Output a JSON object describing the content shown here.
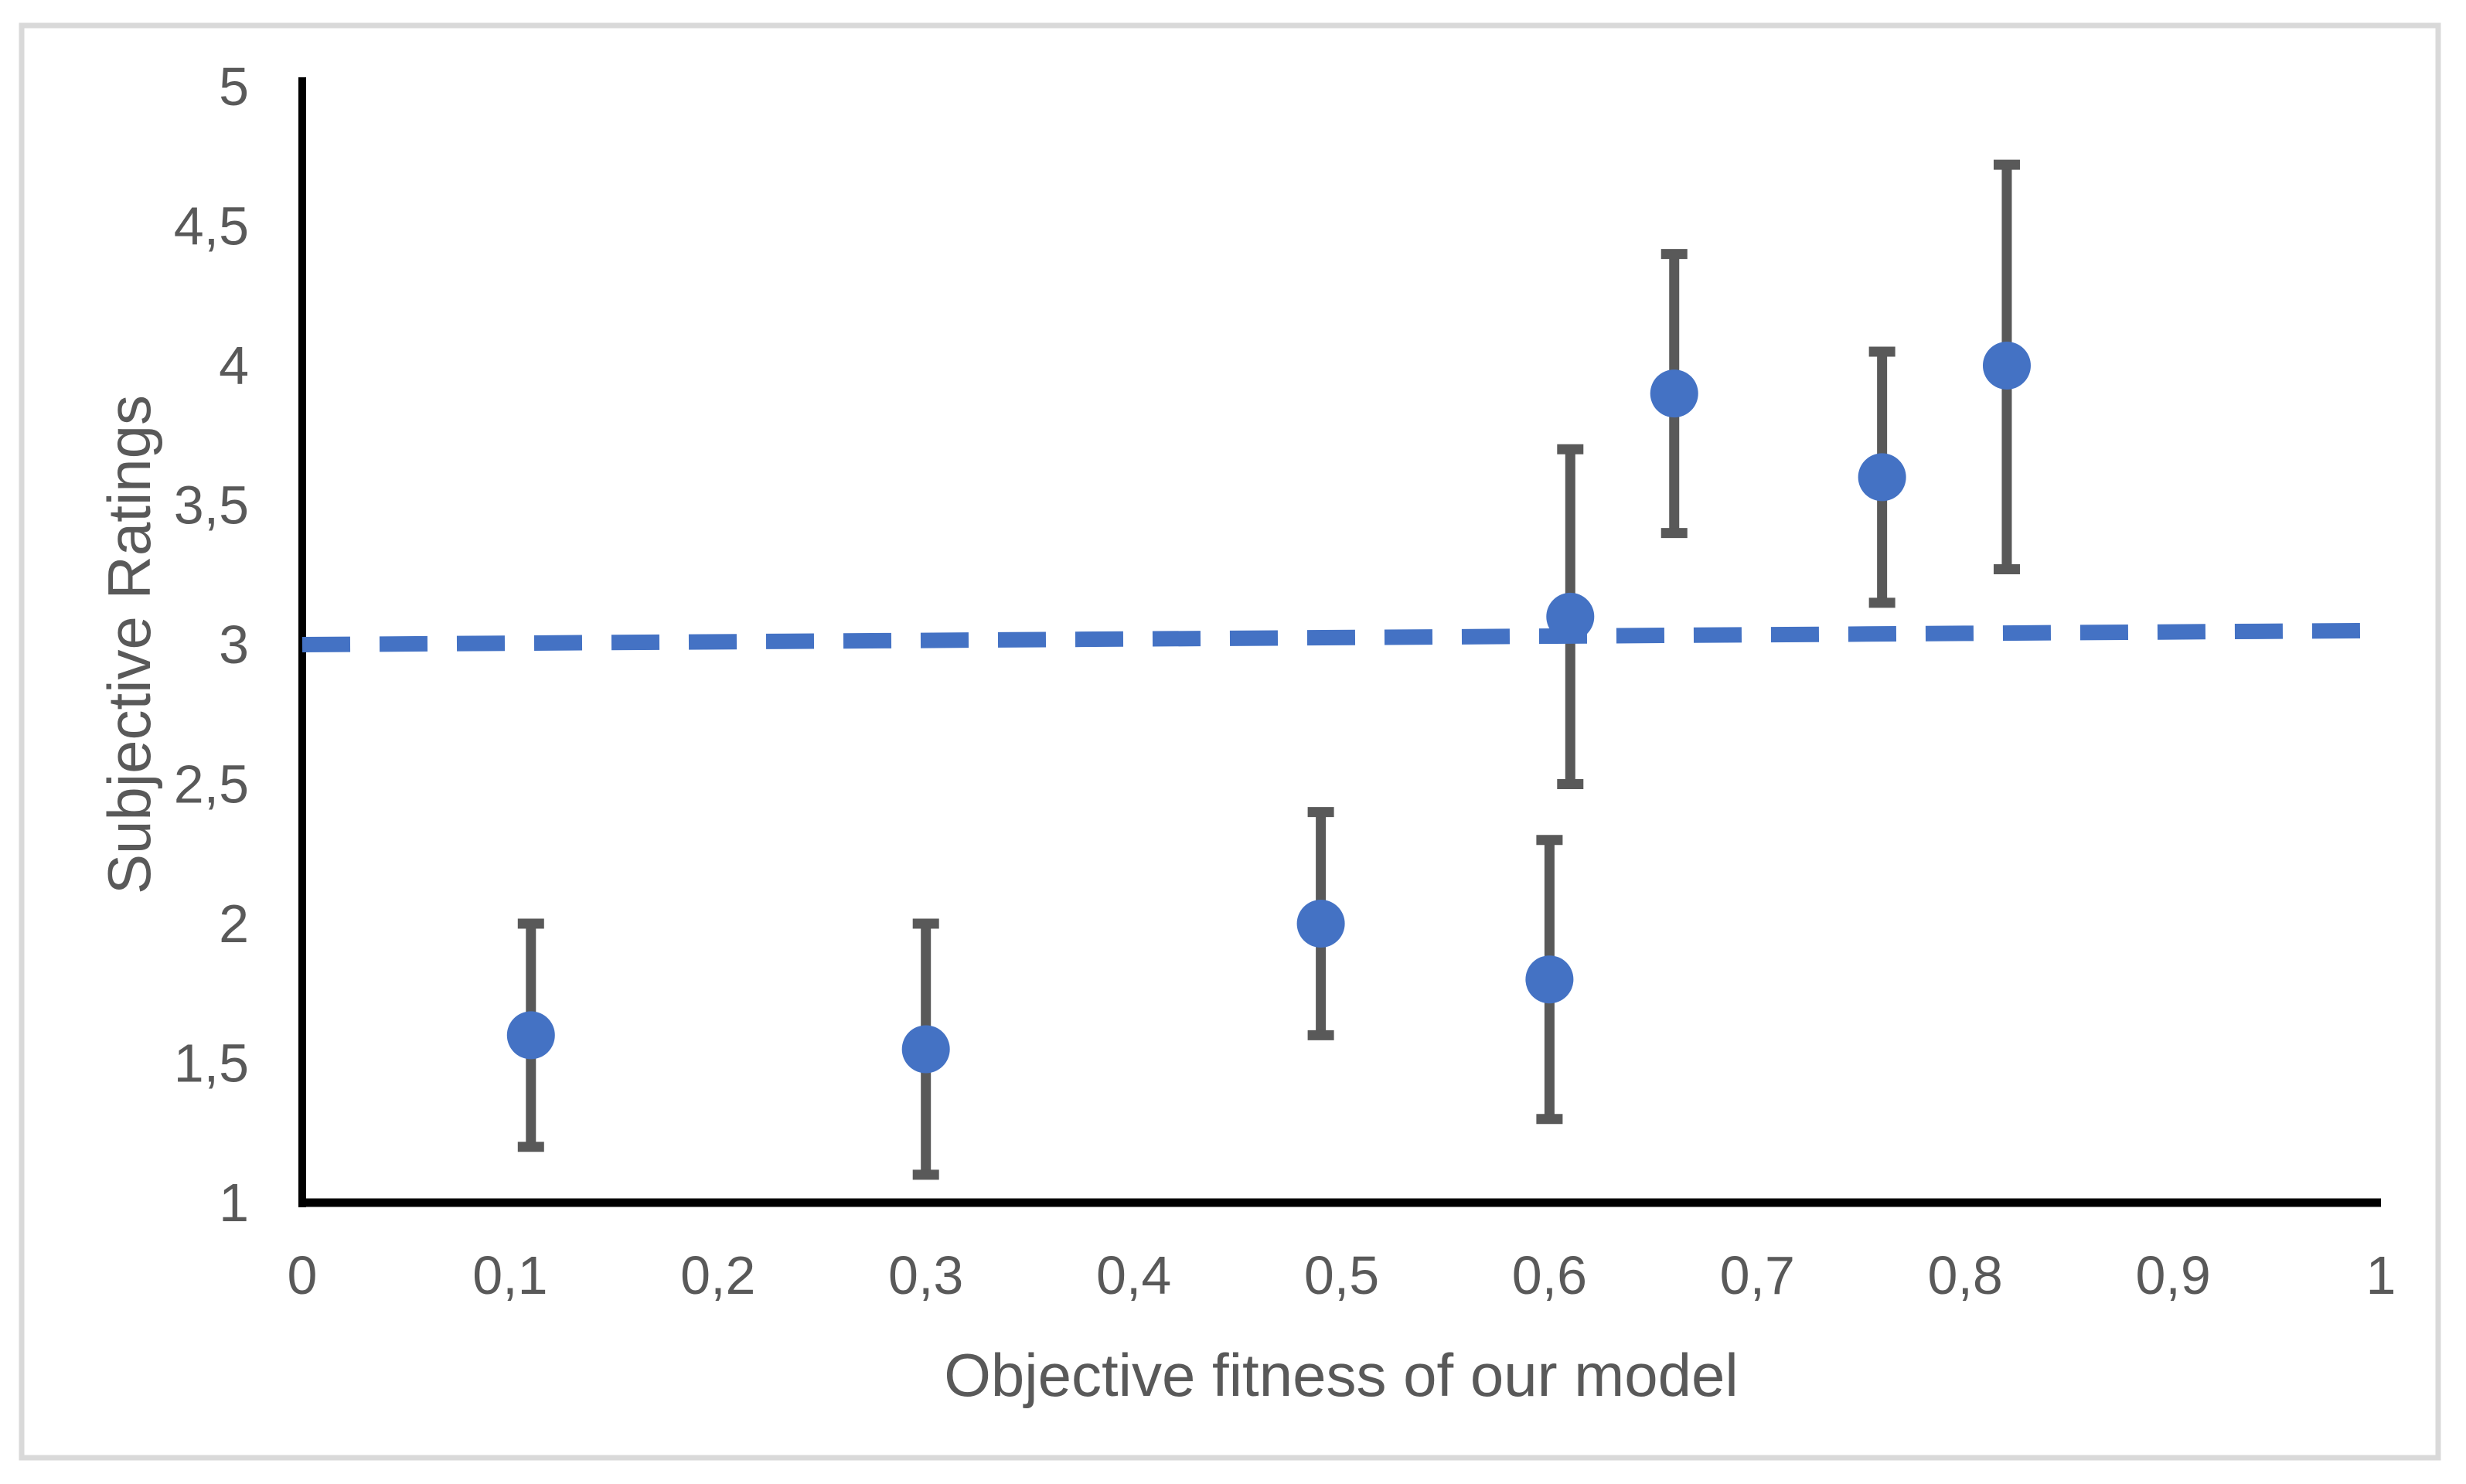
{
  "colors": {
    "background": "#ffffff",
    "frame_border": "#d9d9d9",
    "axis": "#000000",
    "text": "#595959",
    "accent_blue": "#4472c4",
    "error_gray": "#595959"
  },
  "chart_data": {
    "type": "scatter",
    "title": "",
    "xlabel": "Objective fitness of our model",
    "ylabel": "Subjective Ratings",
    "xlim": [
      0,
      1
    ],
    "ylim": [
      1,
      5
    ],
    "grid": false,
    "legend": "none",
    "decimal_separator": ",",
    "x_ticks": {
      "values": [
        0,
        0.1,
        0.2,
        0.3,
        0.4,
        0.5,
        0.6,
        0.7,
        0.8,
        0.9,
        1
      ],
      "labels": [
        "0",
        "0,1",
        "0,2",
        "0,3",
        "0,4",
        "0,5",
        "0,6",
        "0,7",
        "0,8",
        "0,9",
        "1"
      ]
    },
    "y_ticks": {
      "values": [
        1,
        1.5,
        2,
        2.5,
        3,
        3.5,
        4,
        4.5,
        5
      ],
      "labels": [
        "1",
        "1,5",
        "2",
        "2,5",
        "3",
        "3,5",
        "4",
        "4,5",
        "5"
      ]
    },
    "series": [
      {
        "marker_color": "#4472c4",
        "error_bar_color": "#595959",
        "points": [
          {
            "x": 0.11,
            "y": 1.6,
            "y_low": 1.2,
            "y_high": 2.0
          },
          {
            "x": 0.3,
            "y": 1.55,
            "y_low": 1.1,
            "y_high": 2.0
          },
          {
            "x": 0.49,
            "y": 2.0,
            "y_low": 1.6,
            "y_high": 2.4
          },
          {
            "x": 0.6,
            "y": 1.8,
            "y_low": 1.3,
            "y_high": 2.3
          },
          {
            "x": 0.61,
            "y": 3.1,
            "y_low": 2.5,
            "y_high": 3.7
          },
          {
            "x": 0.66,
            "y": 3.9,
            "y_low": 3.4,
            "y_high": 4.4
          },
          {
            "x": 0.76,
            "y": 3.6,
            "y_low": 3.15,
            "y_high": 4.05
          },
          {
            "x": 0.82,
            "y": 4.0,
            "y_low": 3.27,
            "y_high": 4.72
          }
        ]
      }
    ],
    "reference_line": {
      "style": "dashed",
      "color": "#4472c4",
      "x_start": 0,
      "y_start": 3.0,
      "x_end": 0.99,
      "y_end": 3.05
    }
  }
}
